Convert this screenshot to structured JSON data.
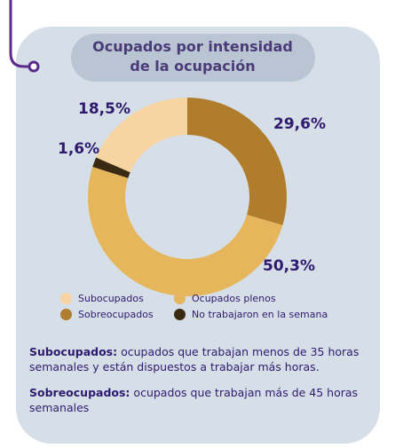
{
  "chart_data": {
    "type": "donut",
    "title": "Ocupados por intensidad de la ocupación",
    "categories": [
      "Sobreocupados",
      "Ocupados plenos",
      "No trabajaron en la semana",
      "Subocupados"
    ],
    "values": [
      29.6,
      50.3,
      1.6,
      18.5
    ],
    "value_labels": [
      "29,6%",
      "50,3%",
      "1,6%",
      "18,5%"
    ],
    "colors": [
      "#b07d2c",
      "#e6b65c",
      "#3b2a12",
      "#f6d5a3"
    ]
  },
  "notes": [
    {
      "term": "Subocupados:",
      "text": "ocupados que trabajan menos de 35 horas semanales y están dispuestos a trabajar más horas."
    },
    {
      "term": "Sobreocupados:",
      "text": "ocupados que trabajan más de 45 horas semanales"
    }
  ]
}
